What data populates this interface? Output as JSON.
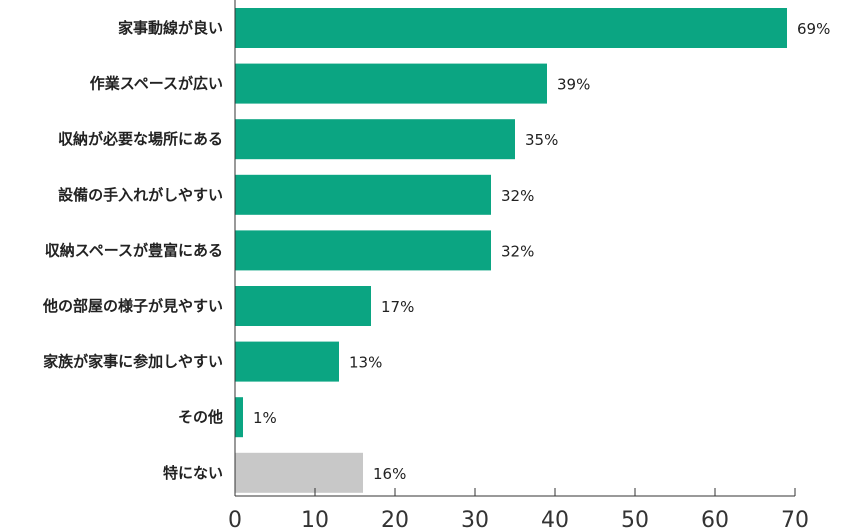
{
  "chart_data": {
    "type": "bar",
    "orientation": "horizontal",
    "categories": [
      "家事動線が良い",
      "作業スペースが広い",
      "収納が必要な場所にある",
      "設備の手入れがしやすい",
      "収納スペースが豊富にある",
      "他の部屋の様子が見やすい",
      "家族が家事に参加しやすい",
      "その他",
      "特にない"
    ],
    "values": [
      69,
      39,
      35,
      32,
      32,
      17,
      13,
      1,
      16
    ],
    "data_labels": [
      "69%",
      "39%",
      "35%",
      "32%",
      "32%",
      "17%",
      "13%",
      "1%",
      "16%"
    ],
    "bar_colors": [
      "#0ba582",
      "#0ba582",
      "#0ba582",
      "#0ba582",
      "#0ba582",
      "#0ba582",
      "#0ba582",
      "#0ba582",
      "#c8c8c8"
    ],
    "xlim": [
      0,
      70
    ],
    "xticks": [
      "0",
      "10",
      "20",
      "30",
      "40",
      "50",
      "60",
      "70"
    ],
    "title": "",
    "xlabel": "",
    "ylabel": "",
    "grid": false,
    "legend": "none"
  }
}
